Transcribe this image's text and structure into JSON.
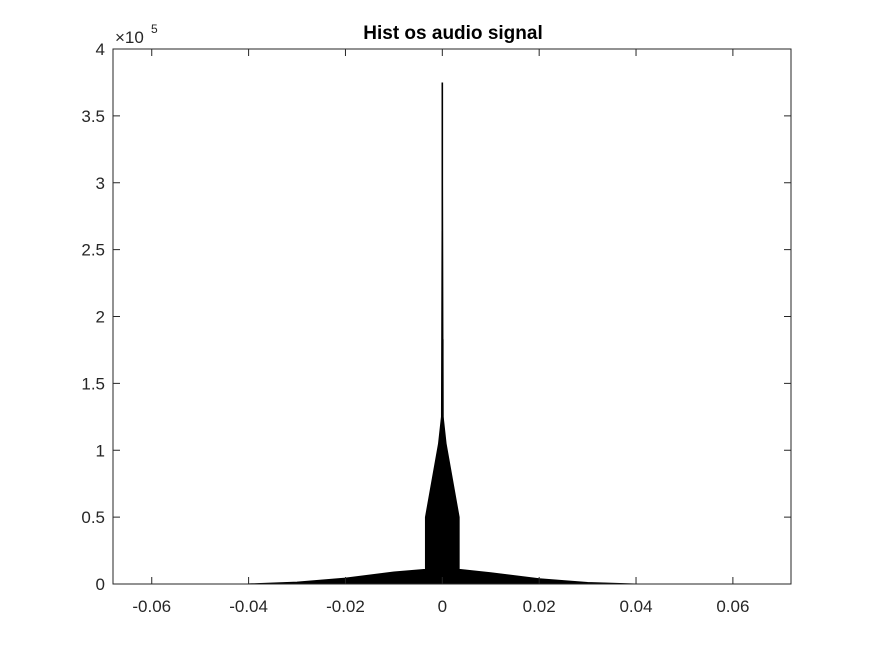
{
  "chart_data": {
    "type": "histogram",
    "title": "Hist os audio signal",
    "xlabel": "",
    "ylabel": "",
    "xlim": [
      -0.068,
      0.072
    ],
    "ylim": [
      0,
      400000
    ],
    "y_exponent_label": "×10",
    "y_exponent_power": "5",
    "x_ticks": [
      -0.06,
      -0.04,
      -0.02,
      0,
      0.02,
      0.04,
      0.06
    ],
    "x_tick_labels": [
      "-0.06",
      "-0.04",
      "-0.02",
      "0",
      "0.02",
      "0.04",
      "0.06"
    ],
    "y_ticks": [
      0,
      50000,
      100000,
      150000,
      200000,
      250000,
      300000,
      350000,
      400000
    ],
    "y_tick_labels": [
      "0",
      "0.5",
      "1",
      "1.5",
      "2",
      "2.5",
      "3",
      "3.5",
      "4"
    ],
    "grid": false,
    "bar_color": "#000000",
    "envelope": {
      "x": [
        -0.0605,
        -0.04,
        -0.03,
        -0.02,
        -0.01,
        -0.0035,
        -0.0035,
        -0.0008,
        -0.0002,
        0,
        0.0002,
        0.0008,
        0.0035,
        0.0035,
        0.01,
        0.02,
        0.03,
        0.04,
        0.0665
      ],
      "y": [
        0,
        150,
        1500,
        4500,
        9000,
        11000,
        50000,
        105000,
        125000,
        375000,
        125000,
        105000,
        50000,
        11000,
        8500,
        4000,
        1200,
        100,
        0
      ]
    },
    "spikes": [
      {
        "x": 0,
        "y": 375000
      },
      {
        "x": 0.0001,
        "y": 183000
      },
      {
        "x": -0.0001,
        "y": 125000
      }
    ]
  }
}
